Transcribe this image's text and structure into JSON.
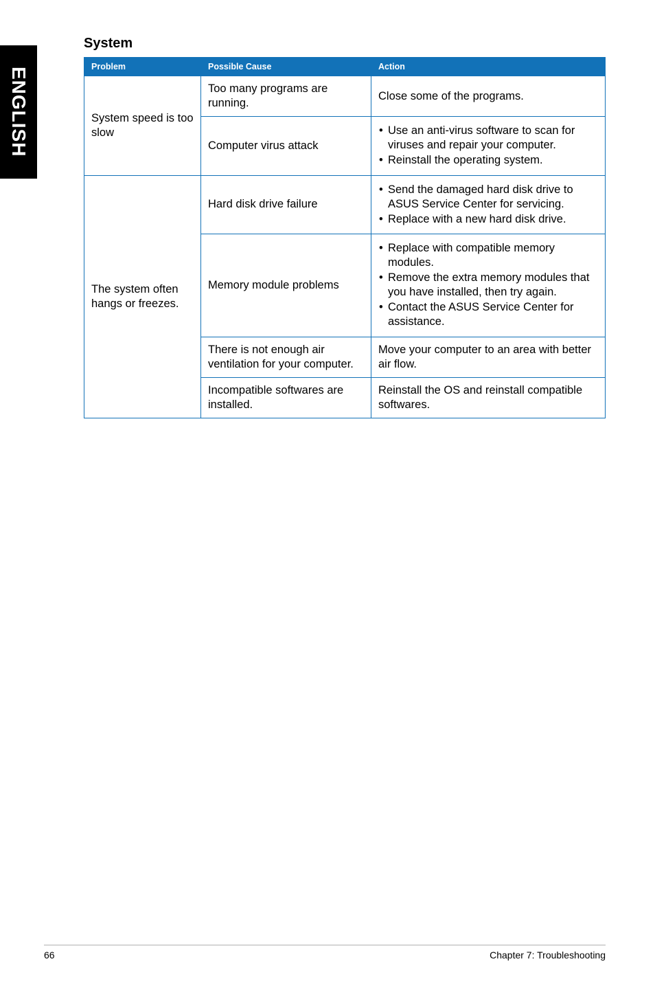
{
  "sideTab": "ENGLISH",
  "sectionTitle": "System",
  "table": {
    "headers": {
      "problem": "Problem",
      "cause": "Possible Cause",
      "action": "Action"
    },
    "problems": {
      "speed": "System speed is too slow",
      "hangs": "The system often hangs or freezes."
    },
    "rows": [
      {
        "cause": "Too many programs are running.",
        "actionText": "Close some of the programs."
      },
      {
        "cause": "Computer virus attack",
        "actionList": [
          "Use an anti-virus software to scan for viruses and repair your computer.",
          "Reinstall the operating system."
        ]
      },
      {
        "cause": "Hard disk drive failure",
        "actionList": [
          "Send the damaged hard disk drive to ASUS Service Center for servicing.",
          "Replace with a new hard disk drive."
        ]
      },
      {
        "cause": "Memory module problems",
        "actionList": [
          "Replace with compatible memory modules.",
          "Remove the extra memory modules that you have installed, then try again.",
          "Contact the ASUS Service Center for assistance."
        ]
      },
      {
        "cause": "There is not enough air ventilation for your computer.",
        "actionText": "Move your computer to an area with better air flow."
      },
      {
        "cause": "Incompatible softwares are installed.",
        "actionText": "Reinstall the OS and reinstall compatible softwares."
      }
    ]
  },
  "footer": {
    "pageNumber": "66",
    "chapter": "Chapter 7: Troubleshooting"
  },
  "colors": {
    "headerBg": "#1272b8",
    "headerText": "#ffffff",
    "border": "#1272b8",
    "sideTabBg": "#000000",
    "sideTabText": "#ffffff",
    "bodyText": "#000000",
    "footerBorder": "#b0b0b0"
  },
  "typography": {
    "sectionTitleSize": 20,
    "headerFontSize": 12.5,
    "cellFontSize": 16.5,
    "footerFontSize": 14,
    "sideTabFontSize": 28
  }
}
